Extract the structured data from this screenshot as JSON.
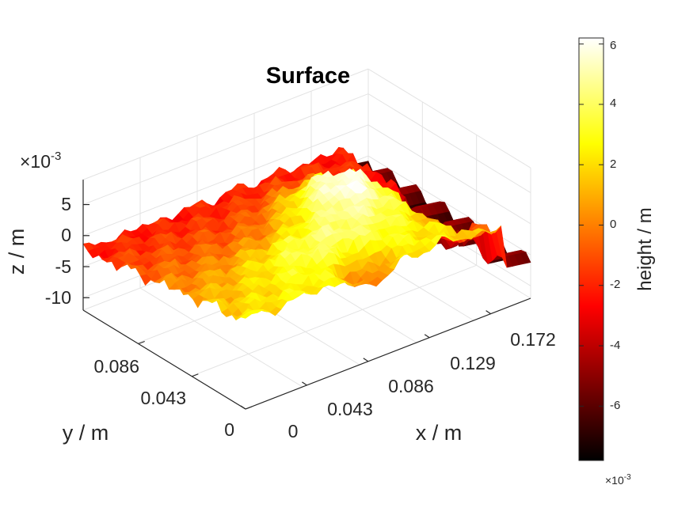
{
  "chart_data": {
    "type": "surface",
    "title": "Surface",
    "xlabel": "x / m",
    "ylabel": "y / m",
    "zlabel": "z / m",
    "x_ticks": [
      "0",
      "0.043",
      "0.086",
      "0.129",
      "0.172"
    ],
    "y_ticks": [
      "0",
      "0.043",
      "0.086"
    ],
    "z_ticks": [
      "5",
      "0",
      "-5",
      "-10"
    ],
    "z_multiplier_base": "×10",
    "z_multiplier_exp": "-3",
    "xlim": [
      0,
      0.2
    ],
    "ylim": [
      0,
      0.13
    ],
    "zlim": [
      -0.012,
      0.009
    ],
    "colorbar": {
      "label": "height  / m",
      "ticks": [
        "6",
        "4",
        "2",
        "0",
        "-2",
        "-4",
        "-6"
      ],
      "multiplier_base": "×10",
      "multiplier_exp": "-3",
      "range": [
        -0.0078,
        0.0062
      ],
      "colormap": "hot"
    },
    "grid": true,
    "view": "3d-perspective"
  }
}
